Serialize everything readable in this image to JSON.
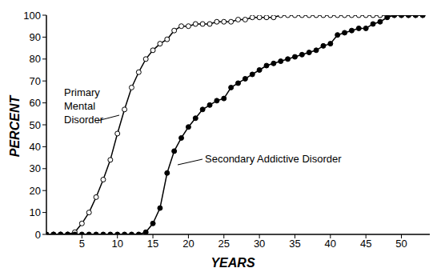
{
  "chart_data": {
    "type": "line",
    "x_label": "YEARS",
    "y_label": "PERCENT",
    "x": [
      0,
      1,
      2,
      3,
      4,
      5,
      6,
      7,
      8,
      9,
      10,
      11,
      12,
      13,
      14,
      15,
      16,
      17,
      18,
      19,
      20,
      21,
      22,
      23,
      24,
      25,
      26,
      27,
      28,
      29,
      30,
      31,
      32,
      33,
      34,
      35,
      36,
      37,
      38,
      39,
      40,
      41,
      42,
      43,
      44,
      45,
      46,
      47,
      48,
      49,
      50,
      51,
      52,
      53
    ],
    "series": [
      {
        "name": "Primary Mental Disorder",
        "color": "#000000",
        "marker": "open_circle",
        "values": [
          0,
          0,
          0,
          0,
          1,
          5,
          10,
          17,
          25,
          34,
          46,
          57,
          67,
          74,
          80,
          84,
          87,
          89,
          93,
          95,
          95,
          96,
          96,
          96,
          97,
          97,
          97,
          98,
          98,
          99,
          99,
          99,
          99,
          100,
          100,
          100,
          100,
          100,
          100,
          100,
          100,
          100,
          100,
          100,
          100,
          100,
          100,
          100,
          100,
          100,
          100,
          100,
          100,
          100
        ]
      },
      {
        "name": "Secondary Addictive Disorder",
        "color": "#000000",
        "marker": "filled_circle",
        "values": [
          0,
          0,
          0,
          0,
          0,
          0,
          0,
          0,
          0,
          0,
          0,
          0,
          0,
          0,
          1,
          5,
          12,
          28,
          38,
          44,
          49,
          53,
          57,
          59,
          61,
          62,
          67,
          69,
          71,
          73,
          75,
          77,
          78,
          79,
          80,
          81,
          82,
          83,
          84,
          86,
          87,
          91,
          92,
          93,
          94,
          94,
          96,
          97,
          99,
          100,
          100,
          100,
          100,
          100
        ]
      }
    ],
    "xlim": [
      0,
      54
    ],
    "xticks": [
      5,
      10,
      15,
      20,
      25,
      30,
      35,
      40,
      45,
      50
    ],
    "ylim": [
      0,
      100
    ],
    "yticks": [
      0,
      10,
      20,
      30,
      40,
      50,
      60,
      70,
      80,
      90,
      100
    ],
    "grid": false
  }
}
